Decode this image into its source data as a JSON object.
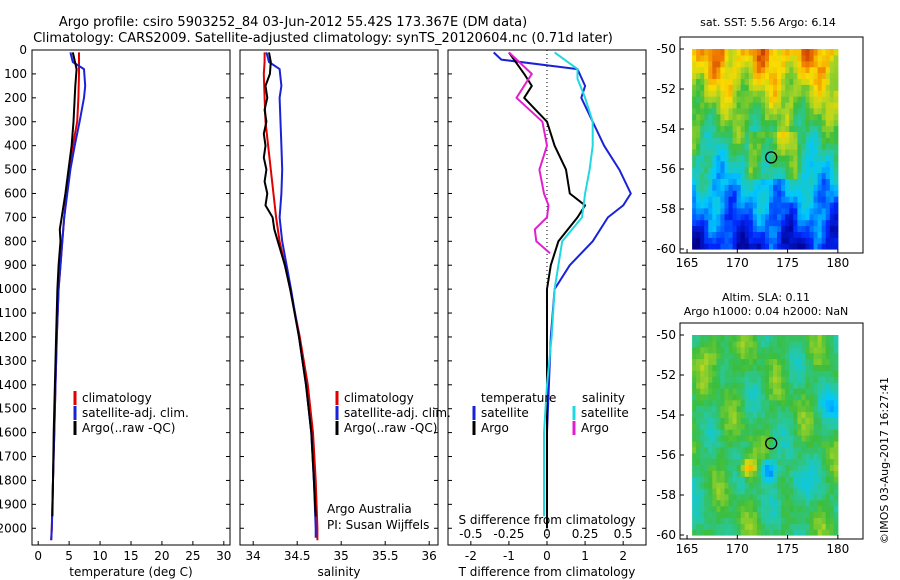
{
  "header": {
    "line1": "Argo profile: csiro 5903252_84 03-Jun-2012 55.42S 173.367E (DM data)",
    "line2": "Climatology: CARS2009. Satellite-adjusted climatology: synTS_20120604.nc (0.71d later)"
  },
  "credit": "©IMOS 03-Aug-2017 16:27:41",
  "colors": {
    "climatology": "#e00000",
    "satellite": "#1a22d8",
    "argo": "#000000",
    "sal_sat": "#22d8e0",
    "sal_argo": "#e020d0"
  },
  "chart_data": [
    {
      "type": "line",
      "title": "",
      "xlabel": "temperature (deg C)",
      "ylabel": "",
      "xlim": [
        -1,
        31
      ],
      "ylim": [
        2070,
        0
      ],
      "xticks": [
        "0",
        "5",
        "10",
        "15",
        "20",
        "25",
        "30"
      ],
      "yticks": [
        "0",
        "100",
        "200",
        "300",
        "400",
        "500",
        "600",
        "700",
        "800",
        "900",
        "1000",
        "1100",
        "1200",
        "1300",
        "1400",
        "1500",
        "1600",
        "1700",
        "1800",
        "1900",
        "2000"
      ],
      "legend": {
        "position": "center-left",
        "entries": [
          "climatology",
          "satellite-adj. clim.",
          "Argo(..raw -QC)"
        ]
      },
      "series": [
        {
          "name": "climatology",
          "color": "#e00000",
          "depth": [
            10,
            50,
            100,
            200,
            300,
            400,
            500,
            600,
            700,
            800,
            900,
            1000,
            1200,
            1400,
            1600,
            1800,
            2000,
            2050
          ],
          "values": [
            6.6,
            6.6,
            6.6,
            6.5,
            6.3,
            5.6,
            5.1,
            4.6,
            4.2,
            3.9,
            3.6,
            3.3,
            3.0,
            2.8,
            2.6,
            2.4,
            2.2,
            2.1
          ]
        },
        {
          "name": "satellite-adj. clim.",
          "color": "#1a22d8",
          "depth": [
            10,
            50,
            80,
            150,
            200,
            300,
            400,
            500,
            600,
            700,
            800,
            900,
            1000,
            1200,
            1400,
            1600,
            1800,
            2000,
            2050
          ],
          "values": [
            5.2,
            5.6,
            7.4,
            7.6,
            7.4,
            6.7,
            5.9,
            5.2,
            4.7,
            4.2,
            3.9,
            3.6,
            3.3,
            3.0,
            2.8,
            2.6,
            2.4,
            2.2,
            2.1
          ]
        },
        {
          "name": "Argo(..raw -QC)",
          "color": "#000000",
          "depth": [
            10,
            80,
            150,
            200,
            300,
            400,
            500,
            600,
            700,
            750,
            800,
            900,
            1000,
            1200,
            1400,
            1600,
            1800,
            1950
          ],
          "values": [
            5.6,
            6.2,
            6.0,
            5.9,
            5.7,
            5.4,
            4.9,
            4.4,
            3.8,
            3.5,
            3.6,
            3.3,
            3.1,
            2.9,
            2.7,
            2.5,
            2.4,
            2.3
          ]
        }
      ]
    },
    {
      "type": "line",
      "xlabel": "salinity",
      "xlim": [
        33.85,
        36.1
      ],
      "ylim": [
        2070,
        0
      ],
      "xticks": [
        "34",
        "34.5",
        "35",
        "35.5",
        "36"
      ],
      "legend": {
        "position": "center-right",
        "entries": [
          "climatology",
          "satellite-adj. clim.",
          "Argo(..raw -QC)"
        ]
      },
      "annotation": [
        "Argo Australia",
        "PI: Susan Wijffels"
      ],
      "series": [
        {
          "name": "climatology",
          "color": "#e00000",
          "depth": [
            10,
            50,
            100,
            200,
            300,
            500,
            700,
            800,
            900,
            1000,
            1200,
            1400,
            1600,
            1800,
            2000,
            2050
          ],
          "values": [
            34.13,
            34.13,
            34.12,
            34.13,
            34.14,
            34.2,
            34.26,
            34.3,
            34.36,
            34.42,
            34.53,
            34.62,
            34.68,
            34.71,
            34.73,
            34.73
          ]
        },
        {
          "name": "satellite-adj. clim.",
          "color": "#1a22d8",
          "depth": [
            10,
            50,
            80,
            150,
            200,
            300,
            400,
            500,
            600,
            700,
            800,
            900,
            1000,
            1200,
            1400,
            1600,
            1800,
            2000,
            2040
          ],
          "values": [
            34.15,
            34.18,
            34.3,
            34.32,
            34.3,
            34.31,
            34.32,
            34.33,
            34.32,
            34.3,
            34.33,
            34.38,
            34.43,
            34.52,
            34.6,
            34.66,
            34.69,
            34.71,
            34.71
          ]
        },
        {
          "name": "Argo(..raw -QC)",
          "color": "#000000",
          "depth": [
            10,
            50,
            100,
            150,
            200,
            250,
            300,
            350,
            400,
            450,
            500,
            550,
            600,
            650,
            700,
            750,
            800,
            900,
            1000,
            1200,
            1400,
            1600,
            1800,
            1950
          ],
          "values": [
            34.18,
            34.2,
            34.19,
            34.14,
            34.16,
            34.13,
            34.15,
            34.12,
            34.14,
            34.12,
            34.15,
            34.13,
            34.16,
            34.14,
            34.22,
            34.24,
            34.28,
            34.36,
            34.42,
            34.52,
            34.6,
            34.66,
            34.69,
            34.71
          ]
        }
      ]
    },
    {
      "type": "line",
      "xlabel": "T difference from climatology",
      "xlabel_top": "S difference from climatology",
      "xlim": [
        -2.6,
        2.6
      ],
      "ylim": [
        2070,
        0
      ],
      "xticks": [
        "-2",
        "-1",
        "0",
        "1",
        "2"
      ],
      "xticks_top": [
        "-0.5",
        "-0.25",
        "0",
        "0.25",
        "0.5"
      ],
      "legend": {
        "position": "center",
        "entries": [
          "temperature",
          "satellite",
          "Argo",
          "salinity",
          "satellite",
          "Argo"
        ]
      },
      "series": [
        {
          "name": "temperature satellite",
          "color": "#1a22d8",
          "depth": [
            10,
            40,
            80,
            150,
            200,
            300,
            400,
            500,
            600,
            650,
            700,
            800,
            900,
            1000,
            1200,
            1400,
            1600,
            1800,
            2000
          ],
          "values": [
            -1.4,
            -1.2,
            0.8,
            1.0,
            0.9,
            1.2,
            1.5,
            1.9,
            2.2,
            2.0,
            1.6,
            1.2,
            0.6,
            0.2,
            0.1,
            0.05,
            0.0,
            0.0,
            0.0
          ]
        },
        {
          "name": "temperature Argo",
          "color": "#000000",
          "depth": [
            10,
            100,
            150,
            200,
            250,
            300,
            400,
            500,
            600,
            650,
            700,
            800,
            900,
            1000,
            1200,
            1600,
            2000
          ],
          "values": [
            -1.0,
            -0.6,
            -0.4,
            -0.6,
            -0.3,
            0.0,
            0.2,
            0.5,
            0.6,
            1.0,
            0.8,
            0.3,
            0.1,
            0.0,
            0.0,
            0.0,
            0.0
          ]
        },
        {
          "name": "salinity satellite",
          "color": "#22d8e0",
          "depth": [
            10,
            80,
            120,
            200,
            300,
            400,
            500,
            600,
            700,
            800,
            1000,
            1200,
            1400,
            1600,
            1800,
            1950
          ],
          "values": [
            0.05,
            0.2,
            0.2,
            0.25,
            0.3,
            0.3,
            0.28,
            0.25,
            0.23,
            0.1,
            0.05,
            0.03,
            0.0,
            -0.02,
            -0.02,
            -0.02
          ]
        },
        {
          "name": "salinity Argo",
          "color": "#e020d0",
          "depth": [
            10,
            100,
            200,
            300,
            400,
            500,
            600,
            650,
            700,
            750,
            800,
            850
          ],
          "values": [
            -0.25,
            -0.1,
            -0.2,
            -0.03,
            0.0,
            -0.05,
            -0.02,
            0.01,
            0.0,
            -0.08,
            -0.07,
            0.02
          ]
        }
      ]
    },
    {
      "type": "heatmap",
      "title": "sat. SST: 5.56 Argo: 6.14",
      "xlim": [
        164.3,
        182.5
      ],
      "ylim": [
        -60.2,
        -49.4
      ],
      "xticks": [
        "165",
        "170",
        "175",
        "180"
      ],
      "yticks": [
        "-50",
        "-52",
        "-54",
        "-56",
        "-58",
        "-60"
      ],
      "marker": {
        "lon": 173.367,
        "lat": -55.42
      }
    },
    {
      "type": "heatmap",
      "title": "Altim. SLA: 0.11",
      "subtitle": "Argo h1000: 0.04 h2000: NaN",
      "xlim": [
        164.3,
        182.5
      ],
      "ylim": [
        -60.2,
        -49.4
      ],
      "xticks": [
        "165",
        "170",
        "175",
        "180"
      ],
      "yticks": [
        "-50",
        "-52",
        "-54",
        "-56",
        "-58",
        "-60"
      ],
      "marker": {
        "lon": 173.367,
        "lat": -55.42
      }
    }
  ]
}
